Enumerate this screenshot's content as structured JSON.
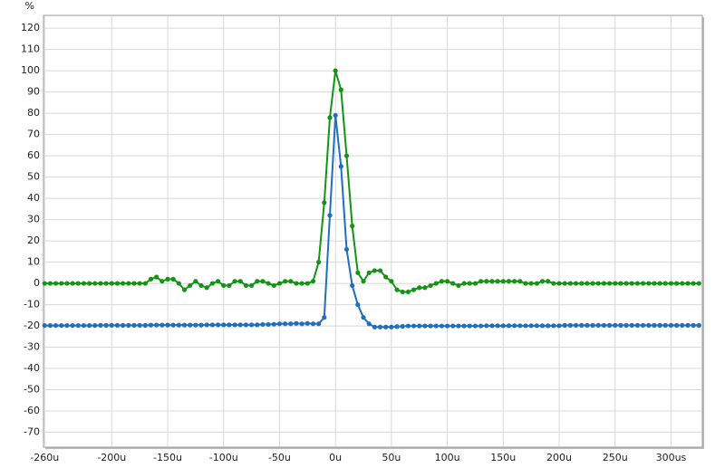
{
  "chart_data": {
    "type": "line",
    "y_label": "%",
    "x": [
      -260,
      -255,
      -250,
      -245,
      -240,
      -235,
      -230,
      -225,
      -220,
      -215,
      -210,
      -205,
      -200,
      -195,
      -190,
      -185,
      -180,
      -175,
      -170,
      -165,
      -160,
      -155,
      -150,
      -145,
      -140,
      -135,
      -130,
      -125,
      -120,
      -115,
      -110,
      -105,
      -100,
      -95,
      -90,
      -85,
      -80,
      -75,
      -70,
      -65,
      -60,
      -55,
      -50,
      -45,
      -40,
      -35,
      -30,
      -25,
      -20,
      -15,
      -10,
      -5,
      0,
      5,
      10,
      15,
      20,
      25,
      30,
      35,
      40,
      45,
      50,
      55,
      60,
      65,
      70,
      75,
      80,
      85,
      90,
      95,
      100,
      105,
      110,
      115,
      120,
      125,
      130,
      135,
      140,
      145,
      150,
      155,
      160,
      165,
      170,
      175,
      180,
      185,
      190,
      195,
      200,
      205,
      210,
      215,
      220,
      225,
      230,
      235,
      240,
      245,
      250,
      255,
      260,
      265,
      270,
      275,
      280,
      285,
      290,
      295,
      300,
      305,
      310,
      315,
      320,
      325
    ],
    "series": [
      {
        "color": "#149414",
        "values": [
          0,
          0,
          0,
          0,
          0,
          0,
          0,
          0,
          0,
          0,
          0,
          0,
          0,
          0,
          0,
          0,
          0,
          0,
          0,
          2,
          3,
          1,
          2,
          2,
          0,
          -3,
          -1,
          1,
          -1,
          -2,
          0,
          1,
          -1,
          -1,
          1,
          1,
          -1,
          -1,
          1,
          1,
          0,
          -1,
          0,
          1,
          1,
          0,
          0,
          0,
          1,
          10,
          38,
          78,
          100,
          91,
          60,
          27,
          5,
          1,
          5,
          6,
          6,
          3,
          1,
          -3,
          -4,
          -4,
          -3,
          -2,
          -2,
          -1,
          0,
          1,
          1,
          0,
          -1,
          0,
          0,
          0,
          1,
          1,
          1,
          1,
          1,
          1,
          1,
          1,
          0,
          0,
          0,
          1,
          1,
          0,
          0,
          0,
          0,
          0,
          0,
          0,
          0,
          0,
          0,
          0,
          0,
          0,
          0,
          0,
          0,
          0,
          0,
          0,
          0,
          0,
          0,
          0,
          0,
          0,
          0,
          0
        ]
      },
      {
        "color": "#1f6fc0",
        "values": [
          -19.8,
          -19.8,
          -19.8,
          -19.8,
          -19.8,
          -19.8,
          -19.8,
          -19.8,
          -19.8,
          -19.8,
          -19.7,
          -19.7,
          -19.7,
          -19.7,
          -19.7,
          -19.7,
          -19.7,
          -19.7,
          -19.7,
          -19.6,
          -19.6,
          -19.6,
          -19.6,
          -19.6,
          -19.6,
          -19.6,
          -19.6,
          -19.6,
          -19.6,
          -19.5,
          -19.5,
          -19.5,
          -19.5,
          -19.5,
          -19.5,
          -19.5,
          -19.5,
          -19.5,
          -19.5,
          -19.3,
          -19.3,
          -19.2,
          -19,
          -19,
          -19,
          -18.8,
          -19,
          -18.8,
          -19,
          -19,
          -16,
          32,
          79,
          55,
          16,
          -1,
          -10,
          -16,
          -19,
          -20.5,
          -20.5,
          -20.5,
          -20.5,
          -20.3,
          -20.2,
          -20,
          -20,
          -20,
          -20,
          -20,
          -20,
          -20,
          -20,
          -20,
          -20,
          -20,
          -20,
          -20,
          -20,
          -19.9,
          -19.9,
          -19.9,
          -19.9,
          -19.9,
          -19.9,
          -19.9,
          -19.9,
          -19.9,
          -19.9,
          -19.9,
          -19.9,
          -19.9,
          -19.9,
          -19.7,
          -19.7,
          -19.7,
          -19.7,
          -19.7,
          -19.7,
          -19.7,
          -19.7,
          -19.7,
          -19.7,
          -19.7,
          -19.7,
          -19.7,
          -19.7,
          -19.7,
          -19.7,
          -19.7,
          -19.7,
          -19.7,
          -19.7,
          -19.7,
          -19.7,
          -19.7,
          -19.7,
          -19.7
        ]
      }
    ],
    "xlim": [
      -261,
      328
    ],
    "xticks": [
      {
        "value": -260,
        "label": "-260u"
      },
      {
        "value": -200,
        "label": "-200u"
      },
      {
        "value": -150,
        "label": "-150u"
      },
      {
        "value": -100,
        "label": "-100u"
      },
      {
        "value": -50,
        "label": "-50u"
      },
      {
        "value": 0,
        "label": "0u"
      },
      {
        "value": 50,
        "label": "50u"
      },
      {
        "value": 100,
        "label": "100u"
      },
      {
        "value": 150,
        "label": "150u"
      },
      {
        "value": 200,
        "label": "200u"
      },
      {
        "value": 250,
        "label": "250u"
      },
      {
        "value": 300,
        "label": "300us"
      }
    ],
    "ylim": [
      -77,
      126
    ],
    "yticks": [
      -70,
      -60,
      -50,
      -40,
      -30,
      -20,
      -10,
      0,
      10,
      20,
      30,
      40,
      50,
      60,
      70,
      80,
      90,
      100,
      110,
      120
    ],
    "grid": true
  }
}
